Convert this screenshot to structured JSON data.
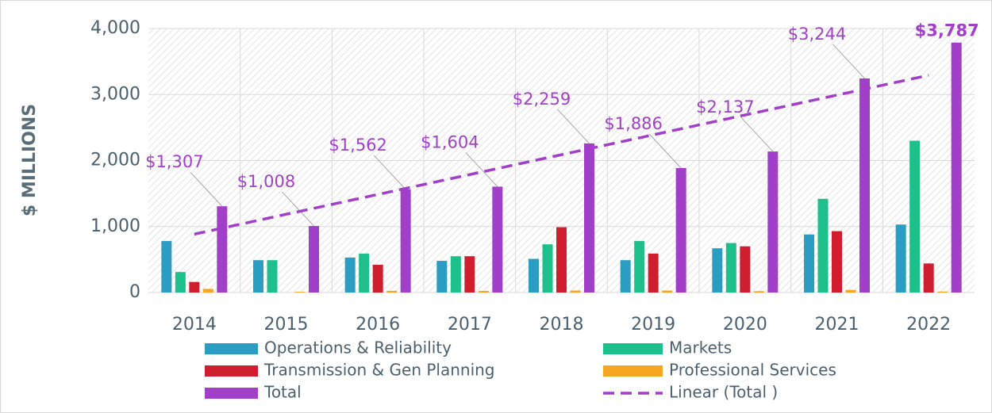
{
  "chart_data": {
    "type": "bar",
    "ylabel": "$ MILLIONS",
    "categories": [
      "2014",
      "2015",
      "2016",
      "2017",
      "2018",
      "2019",
      "2020",
      "2021",
      "2022"
    ],
    "series": [
      {
        "name": "Operations & Reliability",
        "color": "#2b9cc2",
        "values": [
          780,
          490,
          530,
          480,
          510,
          490,
          670,
          880,
          1030
        ]
      },
      {
        "name": "Markets",
        "color": "#1dbf8a",
        "values": [
          310,
          490,
          590,
          550,
          730,
          780,
          750,
          1420,
          2300
        ]
      },
      {
        "name": "Transmission & Gen Planning",
        "color": "#cf1f2e",
        "values": [
          160,
          0,
          420,
          550,
          990,
          590,
          700,
          930,
          440
        ]
      },
      {
        "name": "Professional Services",
        "color": "#f5a623",
        "values": [
          55,
          10,
          25,
          25,
          30,
          30,
          20,
          40,
          15
        ]
      },
      {
        "name": "Total",
        "color": "#a23fc9",
        "values": [
          1307,
          1008,
          1562,
          1604,
          2259,
          1886,
          2137,
          3244,
          3787
        ],
        "value_labels": [
          "$1,307",
          "$1,008",
          "$1,562",
          "$1,604",
          "$2,259",
          "$1,886",
          "$2,137",
          "$3,244",
          "$3,787"
        ]
      }
    ],
    "trendline": {
      "name": "Linear (Total )",
      "color": "#a23fc9",
      "style": "dashed"
    },
    "ylim": [
      0,
      4000
    ],
    "yticks": [
      0,
      {
        "value": 1000,
        "label": "1,000"
      },
      {
        "value": 2000,
        "label": "2,000"
      },
      {
        "value": 3000,
        "label": "3,000"
      },
      {
        "value": 4000,
        "label": "4,000"
      }
    ],
    "grid": true
  }
}
